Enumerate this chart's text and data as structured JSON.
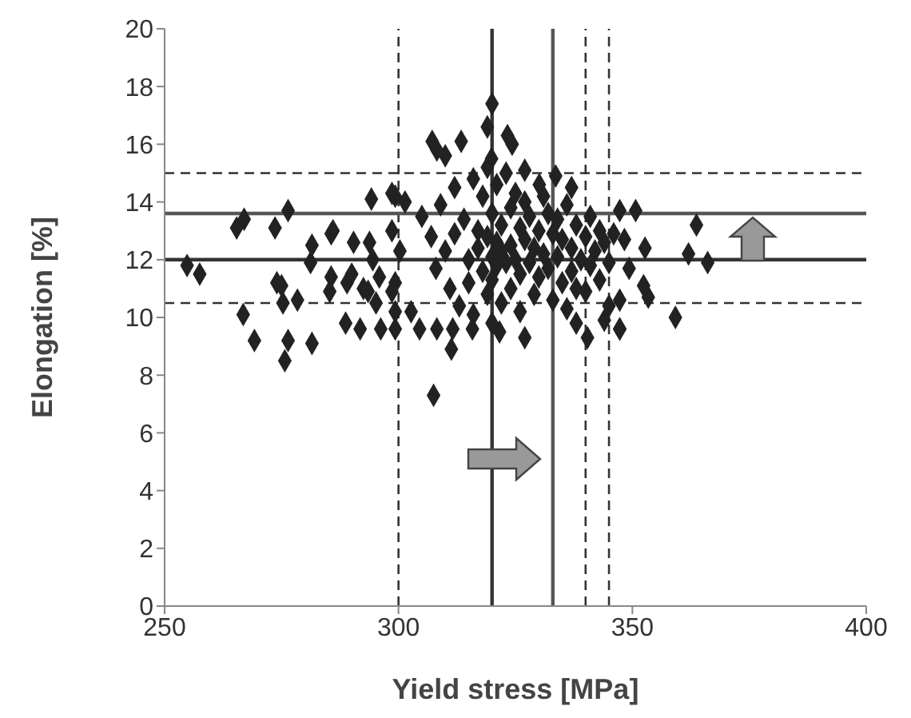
{
  "chart_data": {
    "type": "scatter",
    "xlabel": "Yield stress [MPa]",
    "ylabel": "Elongation [%]",
    "xlim": [
      250,
      400
    ],
    "xticks": [
      250,
      300,
      350,
      400
    ],
    "ylim": [
      0,
      20
    ],
    "yticks": [
      0,
      2,
      4,
      6,
      8,
      10,
      12,
      14,
      16,
      18,
      20
    ],
    "grid": false,
    "legend": false,
    "marker": "diamond",
    "series": [
      {
        "color": "#222222",
        "x": [
          254.8,
          257.5,
          265.4,
          267,
          273.6,
          276.4,
          266.8,
          269.2,
          275.7,
          276.4,
          281.5,
          274,
          275,
          275.3,
          278.4,
          281.5,
          281.2,
          285.6,
          286,
          285.6,
          285.3,
          290.4,
          293.8,
          289,
          290,
          292.5,
          293.5,
          288.7,
          291.8,
          294.2,
          298.6,
          296.2,
          299.3,
          294.5,
          295.9,
          295.2,
          298.6,
          307.2,
          308.2,
          310,
          313.4,
          323.3,
          324.3,
          307.5,
          311.3,
          327,
          321.6,
          340.4,
          347.3,
          319.9,
          333.6,
          337,
          330.1,
          327,
          299.3,
          301.4,
          298.6,
          300.3,
          299.3,
          302.7,
          304.5,
          299.3,
          308.2,
          311.6,
          315.8,
          347.3,
          350.7,
          363.7,
          362,
          366.1,
          352.7,
          349.3,
          352.4,
          353.4,
          347.3,
          359.2,
          347.3,
          348.3,
          320,
          319,
          305,
          307,
          308,
          309,
          310,
          311,
          312,
          312,
          313,
          314,
          315,
          315,
          316,
          316,
          317,
          317,
          318,
          318,
          319,
          319,
          319,
          320,
          320,
          320,
          320,
          321,
          321,
          321,
          322,
          322,
          322,
          323,
          323,
          324,
          324,
          324,
          325,
          325,
          326,
          326,
          326,
          327,
          327,
          328,
          328,
          329,
          329,
          330,
          330,
          331,
          331,
          332,
          332,
          333,
          333,
          334,
          334,
          335,
          335,
          336,
          336,
          337,
          337,
          338,
          338,
          339,
          340,
          340,
          341,
          341,
          342,
          343,
          343,
          344,
          345,
          345,
          346,
          344,
          338
        ],
        "values": [
          11.8,
          11.5,
          13.1,
          13.4,
          13.1,
          13.7,
          10.1,
          9.2,
          8.5,
          9.2,
          9.1,
          11.2,
          11.1,
          10.5,
          10.6,
          12.5,
          11.9,
          12.9,
          13,
          11.4,
          10.9,
          12.6,
          12.6,
          11.2,
          11.5,
          11,
          10.9,
          9.8,
          9.6,
          14.1,
          14.3,
          9.6,
          9.6,
          12,
          11.4,
          10.5,
          10.9,
          16.1,
          15.8,
          15.6,
          16.1,
          16.3,
          16,
          7.3,
          8.9,
          9.3,
          9.5,
          9.3,
          9.6,
          15.5,
          14.9,
          14.5,
          14.6,
          15.1,
          14.2,
          14,
          13,
          12.3,
          11.2,
          10.2,
          9.6,
          10.2,
          9.6,
          9.6,
          9.6,
          13.7,
          13.7,
          13.2,
          12.2,
          11.9,
          12.4,
          11.7,
          11.1,
          10.7,
          10.6,
          10,
          9.6,
          12.7,
          17.4,
          16.6,
          13.5,
          12.8,
          11.7,
          13.9,
          12.3,
          11,
          14.5,
          12.9,
          10.4,
          13.4,
          12,
          11.2,
          14.8,
          10.1,
          13,
          12.4,
          11.6,
          14.2,
          15.2,
          12.8,
          10.8,
          13.6,
          12.1,
          11.3,
          9.8,
          14.6,
          12.6,
          11.8,
          13.2,
          12.3,
          10.5,
          15,
          11.9,
          13.8,
          12.5,
          11,
          14.3,
          12,
          13.1,
          11.5,
          10.2,
          12.7,
          14,
          11.9,
          13.5,
          12.4,
          10.8,
          13,
          11.4,
          12.2,
          14.2,
          11.7,
          13.6,
          12.9,
          10.6,
          12.1,
          13.4,
          11.2,
          12.7,
          13.9,
          10.3,
          12.4,
          11.6,
          13.2,
          11,
          12,
          12.8,
          10.9,
          13.5,
          11.8,
          12.3,
          11.3,
          13,
          12.6,
          11.9,
          10.4,
          12.9,
          9.9,
          9.8
        ]
      }
    ],
    "ref_lines": [
      {
        "axis": "x",
        "value": 300,
        "color": "#333333",
        "line_style": "dashed"
      },
      {
        "axis": "x",
        "value": 320,
        "color": "#333333",
        "line_style": "solid"
      },
      {
        "axis": "x",
        "value": 333,
        "color": "#555555",
        "line_style": "solid"
      },
      {
        "axis": "x",
        "value": 340,
        "color": "#333333",
        "line_style": "dashed"
      },
      {
        "axis": "x",
        "value": 345,
        "color": "#333333",
        "line_style": "dashed"
      },
      {
        "axis": "y",
        "value": 15,
        "color": "#333333",
        "line_style": "dashed"
      },
      {
        "axis": "y",
        "value": 13.6,
        "color": "#555555",
        "line_style": "solid"
      },
      {
        "axis": "y",
        "value": 12,
        "color": "#333333",
        "line_style": "solid"
      },
      {
        "axis": "y",
        "value": 10.5,
        "color": "#333333",
        "line_style": "dashed"
      }
    ]
  }
}
